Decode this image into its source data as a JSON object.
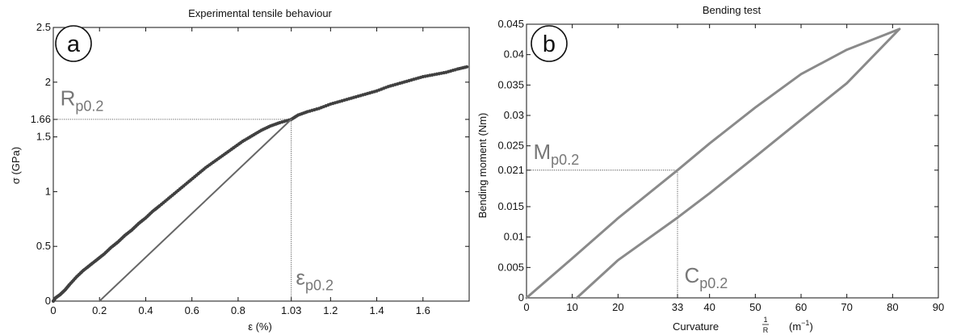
{
  "chart_data": [
    {
      "id": "a",
      "type": "scatter",
      "badge": "a",
      "title": "Experimental tensile behaviour",
      "xlabel": "ε (%)",
      "ylabel": "σ (GPa)",
      "xlim": [
        0,
        1.8
      ],
      "ylim": [
        0,
        2.5
      ],
      "xticks": [
        0,
        0.2,
        0.4,
        0.6,
        0.8,
        1.03,
        1.2,
        1.4,
        1.6
      ],
      "xtick_labels": [
        "0",
        "0.2",
        "0.4",
        "0.6",
        "0.8",
        "1.03",
        "1.2",
        "1.4",
        "1.6"
      ],
      "yticks": [
        0,
        0.5,
        1,
        1.5,
        1.66,
        2,
        2.5
      ],
      "ytick_labels": [
        "0",
        "0.5",
        "1",
        "1.5",
        "1.66",
        "2",
        "2.5"
      ],
      "grid": false,
      "series": [
        {
          "kind": "scatter",
          "color": "#404040",
          "points": [
            [
              0.0,
              0.0
            ],
            [
              0.01,
              0.03
            ],
            [
              0.03,
              0.06
            ],
            [
              0.05,
              0.1
            ],
            [
              0.07,
              0.15
            ],
            [
              0.1,
              0.22
            ],
            [
              0.13,
              0.28
            ],
            [
              0.16,
              0.33
            ],
            [
              0.19,
              0.38
            ],
            [
              0.22,
              0.43
            ],
            [
              0.25,
              0.49
            ],
            [
              0.28,
              0.54
            ],
            [
              0.31,
              0.6
            ],
            [
              0.34,
              0.65
            ],
            [
              0.37,
              0.71
            ],
            [
              0.4,
              0.76
            ],
            [
              0.43,
              0.82
            ],
            [
              0.46,
              0.87
            ],
            [
              0.5,
              0.94
            ],
            [
              0.54,
              1.01
            ],
            [
              0.58,
              1.08
            ],
            [
              0.62,
              1.15
            ],
            [
              0.66,
              1.22
            ],
            [
              0.7,
              1.28
            ],
            [
              0.74,
              1.34
            ],
            [
              0.78,
              1.4
            ],
            [
              0.82,
              1.46
            ],
            [
              0.86,
              1.51
            ],
            [
              0.9,
              1.56
            ],
            [
              0.94,
              1.6
            ],
            [
              0.98,
              1.63
            ],
            [
              1.03,
              1.66
            ],
            [
              1.06,
              1.7
            ],
            [
              1.1,
              1.73
            ],
            [
              1.15,
              1.76
            ],
            [
              1.2,
              1.8
            ],
            [
              1.25,
              1.83
            ],
            [
              1.3,
              1.86
            ],
            [
              1.35,
              1.89
            ],
            [
              1.4,
              1.92
            ],
            [
              1.45,
              1.96
            ],
            [
              1.5,
              1.99
            ],
            [
              1.55,
              2.02
            ],
            [
              1.6,
              2.05
            ],
            [
              1.65,
              2.07
            ],
            [
              1.7,
              2.09
            ],
            [
              1.75,
              2.12
            ],
            [
              1.79,
              2.14
            ]
          ]
        },
        {
          "kind": "line",
          "color": "#666666",
          "points": [
            [
              0.2,
              0
            ],
            [
              1.03,
              1.66
            ]
          ]
        }
      ],
      "reference_lines": [
        {
          "points": [
            [
              0,
              1.66
            ],
            [
              1.03,
              1.66
            ]
          ]
        },
        {
          "points": [
            [
              1.03,
              1.66
            ],
            [
              1.03,
              0
            ]
          ]
        }
      ],
      "annotations": [
        {
          "base": "R",
          "sub": "p0.2",
          "x": 0.03,
          "y": 1.79,
          "anchor": "start"
        },
        {
          "base": "ε",
          "sub": "p0.2",
          "x": 1.05,
          "y": 0.15,
          "anchor": "start"
        }
      ]
    },
    {
      "id": "b",
      "type": "line",
      "badge": "b",
      "title": "Bending test",
      "xlabel": "Curvature",
      "xlabel_fraction": {
        "numerator": "1",
        "denominator": "R"
      },
      "xlabel_unit": "(m",
      "xlabel_unit_exp": "−1",
      "xlabel_unit_close": ")",
      "ylabel": "Bending moment (Nm)",
      "xlim": [
        0,
        90
      ],
      "ylim": [
        0,
        0.045
      ],
      "xticks": [
        0,
        10,
        20,
        33,
        40,
        50,
        60,
        70,
        80,
        90
      ],
      "xtick_labels": [
        "0",
        "10",
        "20",
        "33",
        "40",
        "50",
        "60",
        "70",
        "80",
        "90"
      ],
      "yticks": [
        0,
        0.005,
        0.01,
        0.015,
        0.021,
        0.025,
        0.03,
        0.035,
        0.04,
        0.045
      ],
      "ytick_labels": [
        "0",
        "0.005",
        "0.01",
        "0.015",
        "0.021",
        "0.025",
        "0.03",
        "0.035",
        "0.04",
        "0.045"
      ],
      "grid": false,
      "series": [
        {
          "kind": "line",
          "color": "#8a8a8a",
          "points": [
            [
              0,
              0
            ],
            [
              10,
              0.0065
            ],
            [
              20,
              0.0131
            ],
            [
              33,
              0.021
            ],
            [
              40,
              0.0254
            ],
            [
              50,
              0.0313
            ],
            [
              60,
              0.0368
            ],
            [
              70,
              0.0408
            ],
            [
              81.5,
              0.0442
            ]
          ]
        },
        {
          "kind": "line",
          "color": "#8a8a8a",
          "points": [
            [
              11,
              0
            ],
            [
              20,
              0.0062
            ],
            [
              33,
              0.0132
            ],
            [
              40,
              0.0172
            ],
            [
              50,
              0.0232
            ],
            [
              60,
              0.0293
            ],
            [
              70,
              0.0353
            ],
            [
              81.5,
              0.0442
            ]
          ]
        }
      ],
      "reference_lines": [
        {
          "points": [
            [
              0,
              0.021
            ],
            [
              33,
              0.021
            ]
          ]
        },
        {
          "points": [
            [
              33,
              0.021
            ],
            [
              33,
              0
            ]
          ]
        }
      ],
      "annotations": [
        {
          "base": "M",
          "sub": "p0.2",
          "x": 1.5,
          "y": 0.0228,
          "anchor": "start"
        },
        {
          "base": "C",
          "sub": "p0.2",
          "x": 34.5,
          "y": 0.0025,
          "anchor": "start"
        }
      ]
    }
  ]
}
